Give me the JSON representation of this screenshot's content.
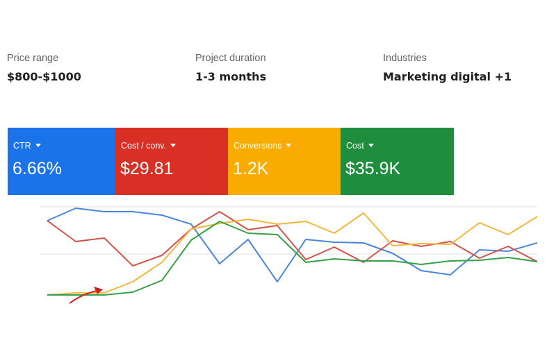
{
  "details": [
    {
      "label": "Price range",
      "value": "$800-$1000"
    },
    {
      "label": "Project duration",
      "value": "1-3 months"
    },
    {
      "label": "Industries",
      "value": "Marketing digital +1"
    }
  ],
  "metrics": [
    {
      "label": "CTR",
      "value": "6.66%",
      "color": "#1a73e8"
    },
    {
      "label": "Cost / conv.",
      "value": "$29.81",
      "color": "#d93025"
    },
    {
      "label": "Conversions",
      "value": "1.2K",
      "color": "#f9ab00"
    },
    {
      "label": "Cost",
      "value": "$35.9K",
      "color": "#1e8e3e"
    }
  ]
}
